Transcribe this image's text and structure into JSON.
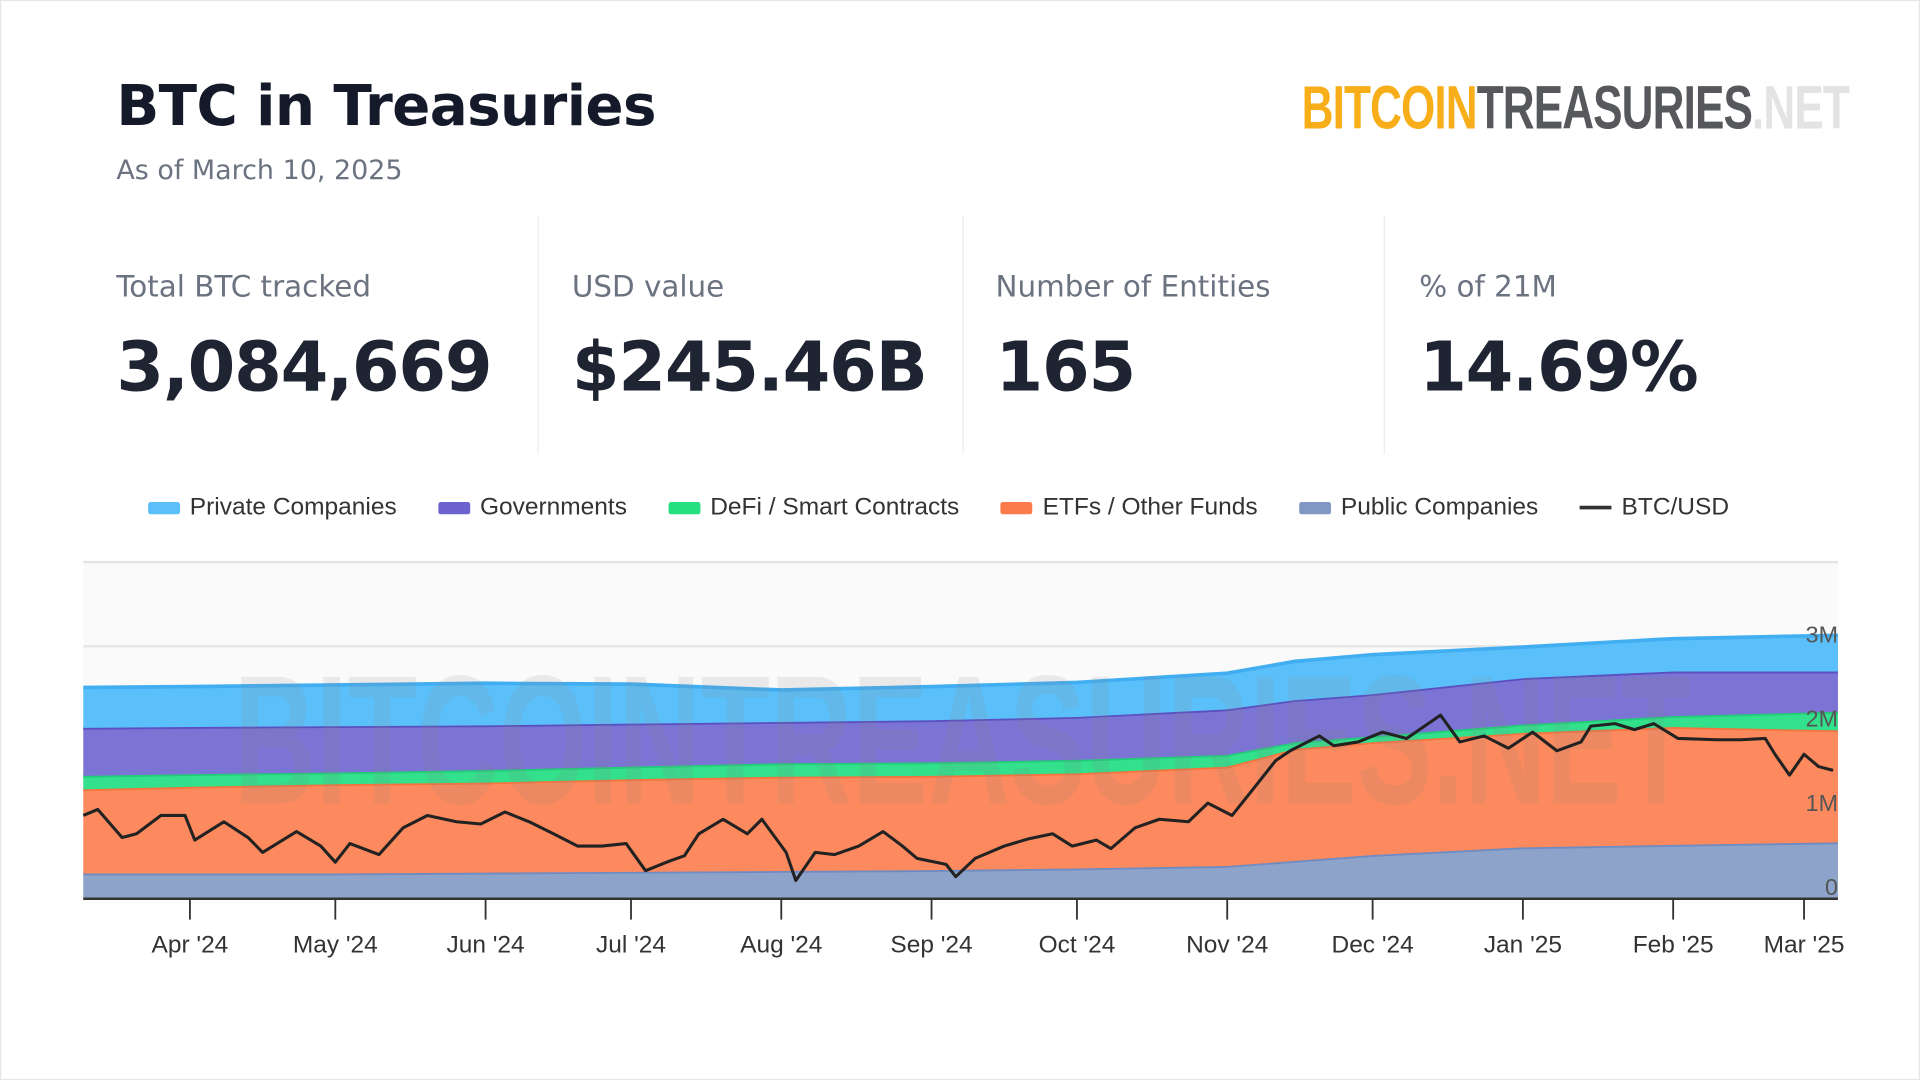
{
  "header": {
    "title": "BTC in Treasuries",
    "subtitle": "As of March 10, 2025"
  },
  "logo": {
    "part1": "BITCOIN",
    "part2": "TREASURIES",
    "part3": ".NET"
  },
  "stats": [
    {
      "label": "Total BTC tracked",
      "value": "3,084,669"
    },
    {
      "label": "USD value",
      "value": "$245.46B"
    },
    {
      "label": "Number of Entities",
      "value": "165"
    },
    {
      "label": "% of 21M",
      "value": "14.69%"
    }
  ],
  "chart_data": {
    "type": "area",
    "stacked": true,
    "title": "",
    "watermark": "BITCOINTREASURIES.NET",
    "x_unit": "days since Mar 10 2024",
    "xlim": [
      0,
      362
    ],
    "ylim": [
      0,
      4000000
    ],
    "y_ticks": [
      {
        "value": 0,
        "label": "0"
      },
      {
        "value": 1000000,
        "label": "1M"
      },
      {
        "value": 2000000,
        "label": "2M"
      },
      {
        "value": 3000000,
        "label": "3M"
      }
    ],
    "x_ticks": [
      {
        "day": 22,
        "label": "Apr '24"
      },
      {
        "day": 52,
        "label": "May '24"
      },
      {
        "day": 83,
        "label": "Jun '24"
      },
      {
        "day": 113,
        "label": "Jul '24"
      },
      {
        "day": 144,
        "label": "Aug '24"
      },
      {
        "day": 175,
        "label": "Sep '24"
      },
      {
        "day": 205,
        "label": "Oct '24"
      },
      {
        "day": 236,
        "label": "Nov '24"
      },
      {
        "day": 266,
        "label": "Dec '24"
      },
      {
        "day": 297,
        "label": "Jan '25"
      },
      {
        "day": 328,
        "label": "Feb '25"
      },
      {
        "day": 355,
        "label": "Mar '25"
      }
    ],
    "x": [
      0,
      22,
      52,
      83,
      113,
      144,
      175,
      205,
      236,
      250,
      266,
      297,
      328,
      362
    ],
    "series": [
      {
        "name": "Public Companies",
        "color": "#8da3c9",
        "stroke": "#6f8cc2",
        "values": [
          0.3,
          0.3,
          0.3,
          0.31,
          0.32,
          0.33,
          0.34,
          0.36,
          0.39,
          0.45,
          0.52,
          0.61,
          0.64,
          0.67
        ],
        "unit": "M BTC"
      },
      {
        "name": "ETFs / Other Funds",
        "color": "#fd8a5e",
        "stroke": "#f5743e",
        "values": [
          1.0,
          1.03,
          1.06,
          1.07,
          1.1,
          1.12,
          1.12,
          1.13,
          1.18,
          1.33,
          1.34,
          1.36,
          1.4,
          1.33
        ],
        "unit": "M BTC"
      },
      {
        "name": "DeFi / Smart Contracts",
        "color": "#33e08c",
        "stroke": "#22cc78",
        "values": [
          0.16,
          0.15,
          0.14,
          0.15,
          0.15,
          0.16,
          0.16,
          0.16,
          0.14,
          0.08,
          0.07,
          0.1,
          0.13,
          0.22
        ],
        "unit": "M BTC"
      },
      {
        "name": "Governments",
        "color": "#7b74d4",
        "stroke": "#5a50c0",
        "values": [
          0.57,
          0.56,
          0.55,
          0.53,
          0.51,
          0.49,
          0.5,
          0.51,
          0.54,
          0.5,
          0.5,
          0.55,
          0.53,
          0.48
        ],
        "unit": "M BTC"
      },
      {
        "name": "Private Companies",
        "color": "#5bc0fa",
        "stroke": "#42aef2",
        "values": [
          0.48,
          0.48,
          0.49,
          0.5,
          0.47,
          0.38,
          0.4,
          0.41,
          0.43,
          0.46,
          0.47,
          0.37,
          0.39,
          0.43
        ],
        "unit": "M BTC"
      }
    ],
    "price": {
      "name": "BTC/USD",
      "color": "#222222",
      "unit": "k USD",
      "axis_range": [
        47.8,
        154.5
      ],
      "points": [
        [
          0,
          74.2
        ],
        [
          3,
          76.1
        ],
        [
          8,
          67.2
        ],
        [
          11,
          68.4
        ],
        [
          16,
          74.2
        ],
        [
          21,
          74.2
        ],
        [
          23,
          66.4
        ],
        [
          29,
          72.2
        ],
        [
          34,
          67.2
        ],
        [
          37,
          62.5
        ],
        [
          44,
          69.1
        ],
        [
          49,
          64.5
        ],
        [
          52,
          59.4
        ],
        [
          55,
          65.3
        ],
        [
          61,
          61.8
        ],
        [
          66,
          70.3
        ],
        [
          71,
          74.2
        ],
        [
          77,
          72.2
        ],
        [
          82,
          71.5
        ],
        [
          87,
          75.3
        ],
        [
          92,
          72.2
        ],
        [
          97,
          68.4
        ],
        [
          102,
          64.5
        ],
        [
          107,
          64.5
        ],
        [
          112,
          65.3
        ],
        [
          116,
          56.7
        ],
        [
          121,
          59.8
        ],
        [
          124,
          61.4
        ],
        [
          127,
          68.4
        ],
        [
          132,
          73.0
        ],
        [
          137,
          68.4
        ],
        [
          140,
          73.0
        ],
        [
          145,
          62.5
        ],
        [
          147,
          53.6
        ],
        [
          151,
          62.5
        ],
        [
          155,
          61.8
        ],
        [
          160,
          64.5
        ],
        [
          165,
          69.1
        ],
        [
          169,
          64.5
        ],
        [
          172,
          60.6
        ],
        [
          178,
          58.7
        ],
        [
          180,
          54.8
        ],
        [
          184,
          60.6
        ],
        [
          190,
          64.5
        ],
        [
          195,
          66.8
        ],
        [
          200,
          68.4
        ],
        [
          204,
          64.5
        ],
        [
          209,
          66.4
        ],
        [
          212,
          63.7
        ],
        [
          217,
          70.3
        ],
        [
          222,
          73.0
        ],
        [
          228,
          72.2
        ],
        [
          232,
          78.1
        ],
        [
          237,
          74.2
        ],
        [
          241,
          81.9
        ],
        [
          246,
          91.6
        ],
        [
          249,
          94.7
        ],
        [
          255,
          99.4
        ],
        [
          258,
          96.3
        ],
        [
          263,
          97.5
        ],
        [
          268,
          100.6
        ],
        [
          273,
          98.6
        ],
        [
          280,
          106.0
        ],
        [
          284,
          97.5
        ],
        [
          289,
          99.4
        ],
        [
          294,
          95.5
        ],
        [
          299,
          100.6
        ],
        [
          304,
          94.7
        ],
        [
          309,
          97.5
        ],
        [
          311,
          102.5
        ],
        [
          316,
          103.3
        ],
        [
          320,
          101.4
        ],
        [
          324,
          103.3
        ],
        [
          329,
          98.6
        ],
        [
          337,
          98.2
        ],
        [
          342,
          98.2
        ],
        [
          347,
          98.6
        ],
        [
          349,
          93.6
        ],
        [
          352,
          87.0
        ],
        [
          355,
          93.6
        ],
        [
          358,
          89.7
        ],
        [
          361,
          88.5
        ]
      ]
    },
    "legend": {
      "placement": "top",
      "items": [
        {
          "label": "Private Companies",
          "color": "#5bc0fa"
        },
        {
          "label": "Governments",
          "color": "#6d63cf"
        },
        {
          "label": "DeFi / Smart Contracts",
          "color": "#26e07f"
        },
        {
          "label": "ETFs / Other Funds",
          "color": "#fd7a4a"
        },
        {
          "label": "Public Companies",
          "color": "#8197c4"
        },
        {
          "label": "BTC/USD",
          "color": "#333333",
          "line": true
        }
      ]
    }
  }
}
